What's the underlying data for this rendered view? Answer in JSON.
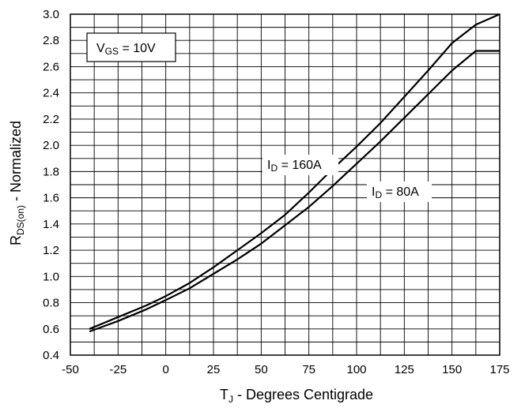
{
  "chart_data": {
    "type": "line",
    "title": "",
    "xlabel": {
      "main": "T",
      "sub": "J",
      "rest": " - Degrees Centigrade"
    },
    "ylabel": {
      "main": "R",
      "sub": "DS(on)",
      "rest": " - Normalized"
    },
    "xlim": [
      -50,
      175
    ],
    "ylim": [
      0.4,
      3.0
    ],
    "x_ticks": [
      -50,
      -25,
      0,
      25,
      50,
      75,
      100,
      125,
      150,
      175
    ],
    "x_tick_labels": [
      "-50",
      "-25",
      "0",
      "25",
      "50",
      "75",
      "100",
      "125",
      "150",
      "175"
    ],
    "y_ticks": [
      0.4,
      0.6,
      0.8,
      1.0,
      1.2,
      1.4,
      1.6,
      1.8,
      2.0,
      2.2,
      2.4,
      2.6,
      2.8,
      3.0
    ],
    "y_tick_labels": [
      "0.4",
      "0.6",
      "0.8",
      "1.0",
      "1.2",
      "1.4",
      "1.6",
      "1.8",
      "2.0",
      "2.2",
      "2.4",
      "2.6",
      "2.8",
      "3.0"
    ],
    "grid": true,
    "condition_box": {
      "main": "V",
      "sub": "GS",
      "rest": " = 10V"
    },
    "series": [
      {
        "name": "I D = 160A",
        "label": {
          "main": "I",
          "sub": "D",
          "rest": " = 160A"
        },
        "x": [
          -40,
          -25,
          -10,
          0,
          12.5,
          25,
          37.5,
          50,
          62.5,
          75,
          87.5,
          100,
          112.5,
          125,
          137.5,
          150,
          162.5,
          175
        ],
        "y": [
          0.6,
          0.69,
          0.78,
          0.85,
          0.95,
          1.07,
          1.2,
          1.33,
          1.47,
          1.64,
          1.82,
          1.99,
          2.17,
          2.37,
          2.57,
          2.78,
          2.92,
          3.0
        ]
      },
      {
        "name": "I D = 80A",
        "label": {
          "main": "I",
          "sub": "D",
          "rest": " = 80A"
        },
        "x": [
          -40,
          -25,
          -10,
          0,
          12.5,
          25,
          37.5,
          50,
          62.5,
          75,
          87.5,
          100,
          112.5,
          125,
          137.5,
          150,
          162.5,
          175
        ],
        "y": [
          0.58,
          0.66,
          0.75,
          0.82,
          0.91,
          1.02,
          1.13,
          1.25,
          1.39,
          1.53,
          1.69,
          1.86,
          2.03,
          2.21,
          2.39,
          2.57,
          2.72,
          2.72
        ]
      }
    ]
  }
}
